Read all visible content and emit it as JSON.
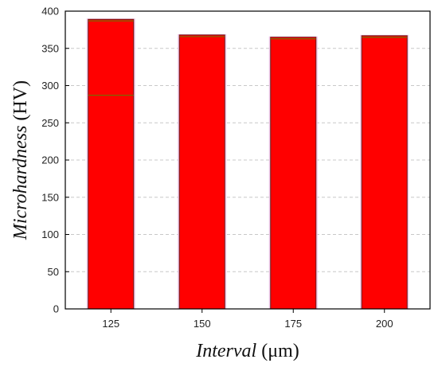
{
  "chart_data": {
    "type": "bar",
    "title": "",
    "categories": [
      "125",
      "150",
      "175",
      "200"
    ],
    "values": [
      389,
      368,
      365,
      367
    ],
    "xlabel": {
      "italic": "Interval",
      "unit": " (μm)"
    },
    "ylabel": {
      "italic": "Microhardness",
      "unit": " (HV)"
    },
    "ylim": [
      0,
      400
    ],
    "yticks": [
      0,
      50,
      100,
      150,
      200,
      250,
      300,
      350,
      400
    ],
    "grid": "y-dashed",
    "legend": "none",
    "colors": {
      "bar": "#ff0000",
      "bar_edge": "#6b1a1a",
      "bar_inner_line": "#7a6a00",
      "axis": "#000000",
      "grid": "#c8c8c8"
    }
  }
}
